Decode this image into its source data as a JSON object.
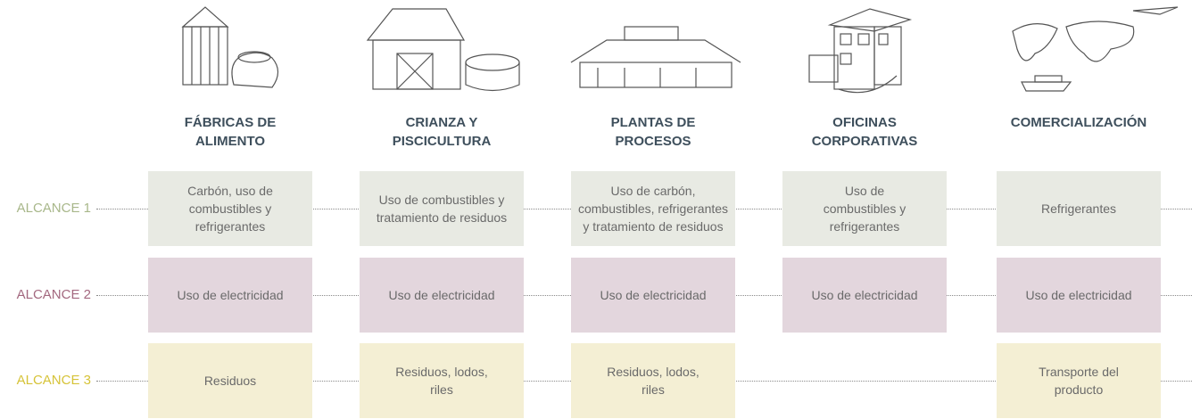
{
  "columns": [
    {
      "title": [
        "FÁBRICAS DE",
        "ALIMENTO"
      ]
    },
    {
      "title": [
        "CRIANZA Y",
        "PISCICULTURA"
      ]
    },
    {
      "title": [
        "PLANTAS DE",
        "PROCESOS"
      ]
    },
    {
      "title": [
        "OFICINAS",
        "CORPORATIVAS"
      ]
    },
    {
      "title": [
        "COMERCIALIZACIÓN"
      ]
    }
  ],
  "rows": [
    {
      "label": "ALCANCE 1",
      "cells": [
        [
          "Carbón, uso de",
          "combustibles y",
          "refrigerantes"
        ],
        [
          "Uso de combustibles y",
          "tratamiento de residuos"
        ],
        [
          "Uso de carbón,",
          "combustibles, refrigerantes",
          "y tratamiento de residuos"
        ],
        [
          "Uso de",
          "combustibles y",
          "refrigerantes"
        ],
        [
          "Refrigerantes"
        ]
      ]
    },
    {
      "label": "ALCANCE 2",
      "cells": [
        [
          "Uso de electricidad"
        ],
        [
          "Uso de electricidad"
        ],
        [
          "Uso de electricidad"
        ],
        [
          "Uso de electricidad"
        ],
        [
          "Uso de electricidad"
        ]
      ]
    },
    {
      "label": "ALCANCE 3",
      "cells": [
        [
          "Residuos"
        ],
        [
          "Residuos, lodos,",
          "riles"
        ],
        [
          "Residuos, lodos,",
          "riles"
        ],
        null,
        [
          "Transporte del",
          "producto"
        ]
      ]
    }
  ]
}
